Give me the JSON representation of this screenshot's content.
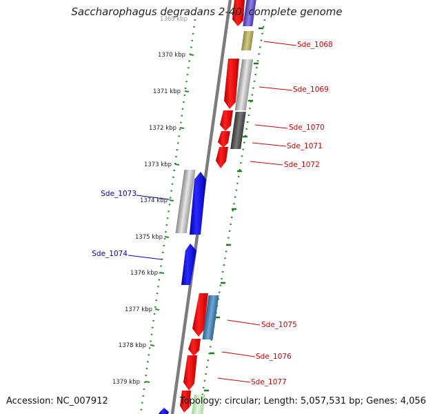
{
  "title": "Saccharophagus degradans 2-40, complete genome",
  "footer": {
    "accession": "Accession: NC_007912",
    "summary": "Topology: circular; Length: 5,057,531 bp; Genes: 4,056"
  },
  "colors": {
    "forward_gene": "#ff0000",
    "reverse_gene": "#0000ee",
    "backbone": "#777777",
    "tick": "#2a8a2a",
    "forward_label": "#cc0000",
    "reverse_label": "#0000bb"
  },
  "scale_labels": [
    "1369 kbp",
    "1370 kbp",
    "1371 kbp",
    "1372 kbp",
    "1373 kbp",
    "1374 kbp",
    "1375 kbp",
    "1376 kbp",
    "1377 kbp",
    "1378 kbp",
    "1379 kbp"
  ],
  "gene_labels_forward": [
    "Sde_1068",
    "Sde_1069",
    "Sde_1070",
    "Sde_1071",
    "Sde_1072",
    "Sde_1075",
    "Sde_1076",
    "Sde_1077"
  ],
  "gene_labels_reverse": [
    "Sde_1073",
    "Sde_1074"
  ]
}
